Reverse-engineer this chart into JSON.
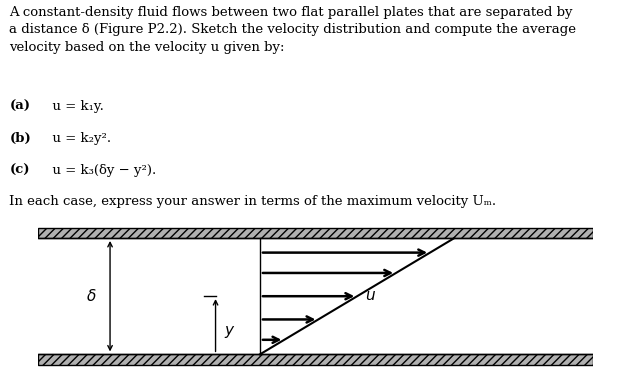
{
  "title_text": "A constant-density fluid flows between two flat parallel plates that are separated by\na distance δ (Figure P2.2). Sketch the velocity distribution and compute the average\nvelocity based on the velocity u given by:",
  "item_a_bold": "(a)",
  "item_a_rest": "  u = k₁y.",
  "item_b_bold": "(b)",
  "item_b_rest": "  u = k₂y².",
  "item_c_bold": "(c)",
  "item_c_rest": "  u = k₃(δy − y²).",
  "footer_text": "In each case, express your answer in terms of the maximum velocity Uₘ.",
  "bg_color": "#ffffff",
  "figsize": [
    6.31,
    3.72
  ],
  "dpi": 100,
  "font_size": 9.5,
  "diagram_arrow_lw": 1.8,
  "plate_hatch": "////",
  "plate_facecolor": "#b0b0b0"
}
